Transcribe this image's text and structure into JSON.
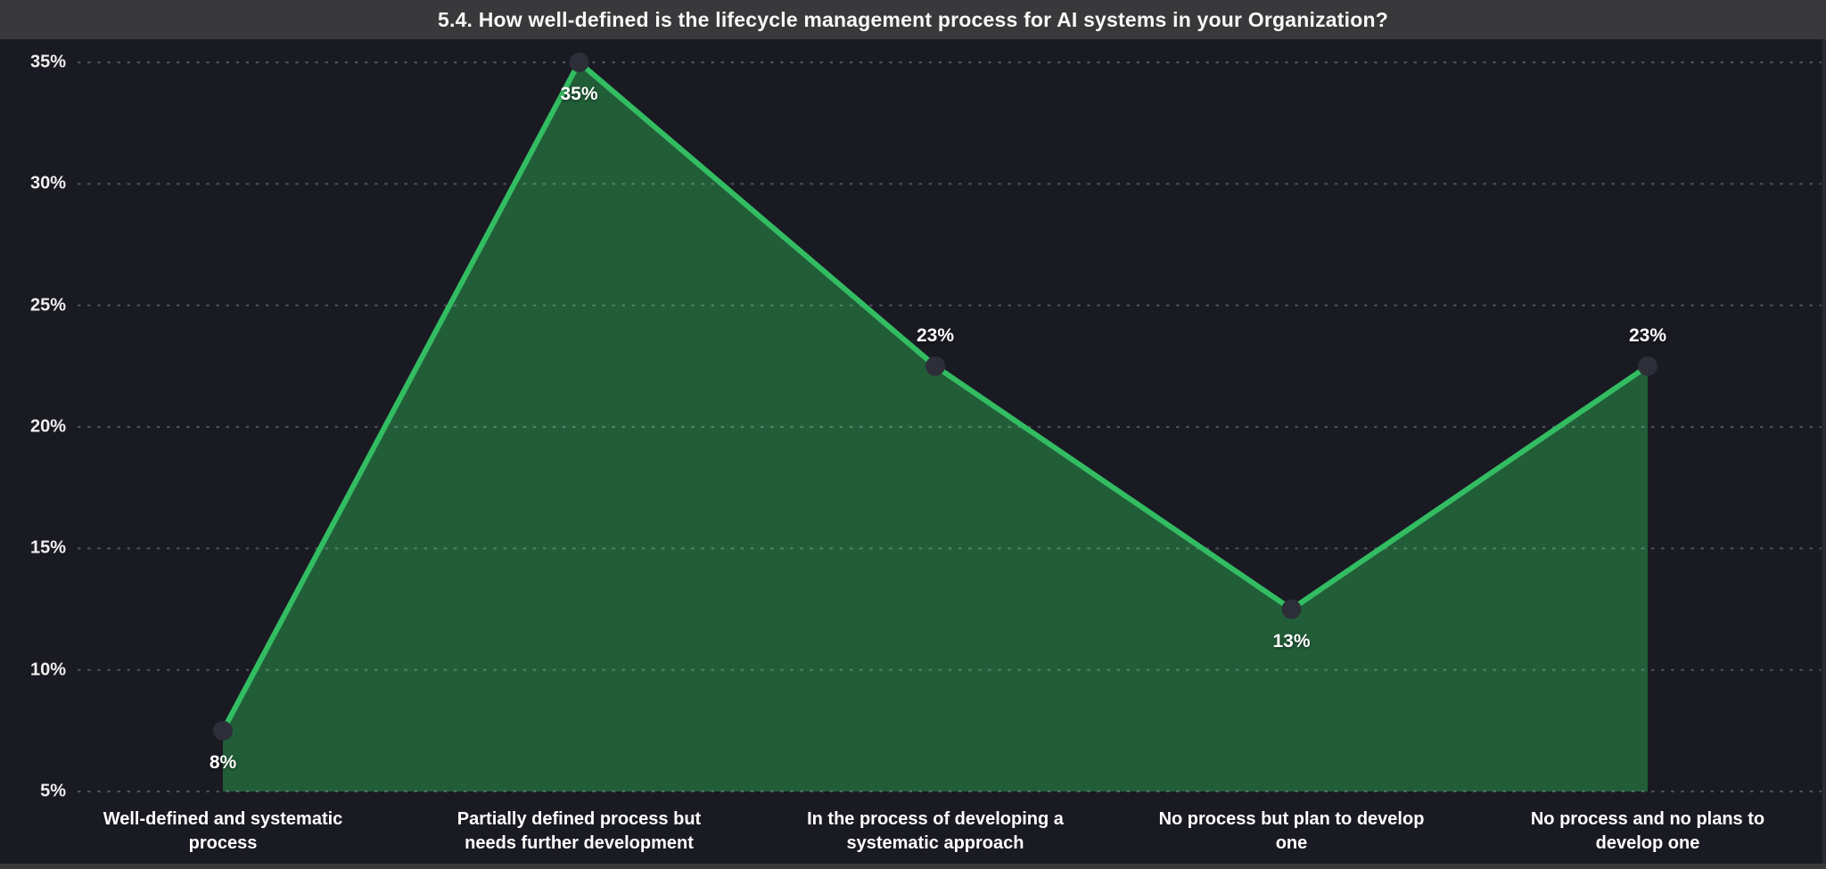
{
  "header": {
    "title": "5.4. How well-defined is the lifecycle management process for AI systems in your Organization?"
  },
  "chart_data": {
    "type": "area",
    "title": "5.4. How well-defined is the lifecycle management process for AI systems in your Organization?",
    "categories": [
      "Well-defined and systematic process",
      "Partially defined process but needs further development",
      "In the process of developing a systematic approach",
      "No process but plan to develop one",
      "No process and no plans to develop one"
    ],
    "values": [
      7.5,
      35,
      22.5,
      12.5,
      22.5
    ],
    "value_labels": [
      "8%",
      "35%",
      "23%",
      "13%",
      "23%"
    ],
    "label_positions": [
      "below",
      "below",
      "above",
      "below",
      "above"
    ],
    "y_ticks": [
      "35%",
      "30%",
      "25%",
      "20%",
      "15%",
      "10%",
      "5%"
    ],
    "ylim": [
      5,
      35
    ],
    "xlabel": "",
    "ylabel": "",
    "grid": "dotted-horizontal",
    "legend": "none",
    "colors": {
      "background": "#1a1a23",
      "title_bar": "#39393b",
      "area_fill": "#215e38",
      "line": "#33bd62",
      "marker": "#2e2e38",
      "gridline": "rgba(205,210,222,0.30)",
      "text": "#ffffff"
    }
  }
}
